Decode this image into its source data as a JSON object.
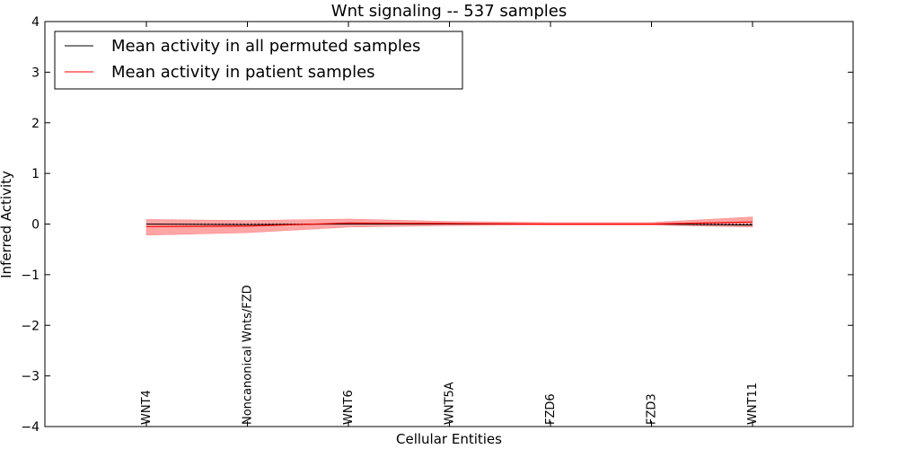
{
  "chart_data": {
    "type": "line",
    "title": "Wnt signaling -- 537 samples",
    "xlabel": "Cellular Entities",
    "ylabel": "Inferred Activity",
    "ylim": [
      -4,
      4
    ],
    "yticks": [
      4,
      3,
      2,
      1,
      0,
      -1,
      -2,
      -3,
      -4
    ],
    "ytick_labels": [
      "4",
      "3",
      "2",
      "1",
      "0",
      "−1",
      "−2",
      "−3",
      "−4"
    ],
    "categories": [
      "WNT4",
      "Noncanonical Wnts/FZD",
      "WNT6",
      "WNT5A",
      "FZD6",
      "FZD3",
      "WNT11"
    ],
    "grid": false,
    "legend_position": "top-left",
    "series": [
      {
        "name": "Mean activity in all permuted samples",
        "color": "#000000",
        "values": [
          0.0,
          -0.01,
          0.0,
          0.0,
          0.0,
          0.0,
          -0.02
        ]
      },
      {
        "name": "Mean activity in patient samples",
        "color": "#ff0000",
        "values": [
          -0.05,
          -0.04,
          0.02,
          0.01,
          0.0,
          0.0,
          0.04
        ],
        "band_lower": [
          -0.22,
          -0.17,
          -0.06,
          -0.03,
          -0.02,
          -0.02,
          -0.06
        ],
        "band_upper": [
          0.09,
          0.07,
          0.1,
          0.05,
          0.03,
          0.03,
          0.14
        ],
        "band_color": "#ff7f7f"
      }
    ]
  }
}
